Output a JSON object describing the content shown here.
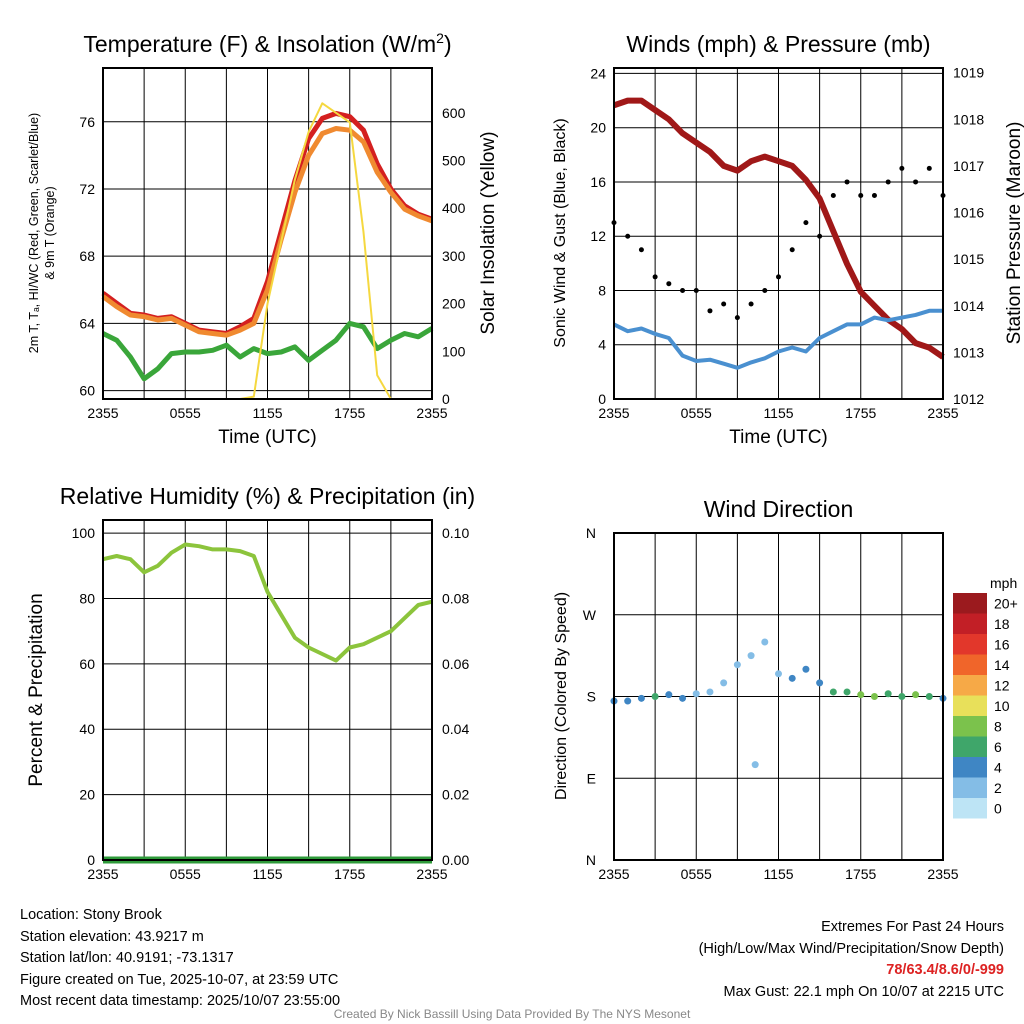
{
  "chart_data": [
    {
      "type": "line",
      "title": "Temperature (F) & Insolation (W/m",
      "title_sup": "2",
      "title_end": ")",
      "xlabel": "Time (UTC)",
      "ylabel": "2m T, Tₐ, HI/WC (Red, Green, Scarlet/Blue)",
      "ylabel2": "& 9m T (Orange)",
      "y2label": "Solar Insolation (Yellow)",
      "xticks": [
        "2355",
        "0555",
        "1155",
        "1755",
        "2355"
      ],
      "ylim": [
        59.5,
        79.2
      ],
      "yticks": [
        60,
        64,
        68,
        72,
        76
      ],
      "y2lim": [
        0,
        694
      ],
      "y2ticks": [
        0,
        100,
        200,
        300,
        400,
        500,
        600
      ],
      "x_hours": [
        0,
        1,
        2,
        3,
        4,
        5,
        6,
        7,
        8,
        9,
        10,
        11,
        12,
        13,
        14,
        15,
        16,
        17,
        18,
        19,
        20,
        21,
        22,
        23,
        24
      ],
      "series": [
        {
          "name": "2m T",
          "color": "#d42020",
          "axis": "left",
          "values": [
            65.8,
            65.2,
            64.6,
            64.5,
            64.3,
            64.4,
            64.0,
            63.6,
            63.5,
            63.4,
            63.8,
            64.3,
            66.5,
            69.5,
            72.5,
            75.0,
            76.2,
            76.5,
            76.3,
            75.5,
            73.5,
            72.0,
            71.0,
            70.5,
            70.2
          ]
        },
        {
          "name": "9m T",
          "color": "#f08a30",
          "axis": "left",
          "values": [
            65.6,
            65.0,
            64.5,
            64.4,
            64.2,
            64.3,
            63.9,
            63.5,
            63.4,
            63.3,
            63.6,
            64.0,
            66.0,
            69.0,
            71.8,
            74.0,
            75.3,
            75.6,
            75.5,
            74.8,
            73.0,
            71.8,
            70.8,
            70.4,
            70.1
          ]
        },
        {
          "name": "2m Td",
          "color": "#3aa63a",
          "axis": "left",
          "values": [
            63.4,
            63.0,
            62.0,
            60.7,
            61.3,
            62.2,
            62.3,
            62.3,
            62.4,
            62.7,
            62.0,
            62.5,
            62.2,
            62.3,
            62.6,
            61.8,
            62.4,
            63.0,
            64.0,
            63.8,
            62.5,
            63.0,
            63.4,
            63.2,
            63.7
          ]
        },
        {
          "name": "Solar",
          "color": "#f5d840",
          "axis": "right",
          "values": [
            0,
            0,
            0,
            0,
            0,
            0,
            0,
            0,
            0,
            0,
            0,
            5,
            200,
            330,
            460,
            560,
            620,
            600,
            580,
            350,
            50,
            0,
            0,
            0,
            0
          ]
        }
      ]
    },
    {
      "type": "line",
      "title": "Winds (mph) & Pressure (mb)",
      "xlabel": "Time (UTC)",
      "ylabel": "Sonic Wind & Gust (Blue, Black)",
      "y2label": "Station Pressure (Maroon)",
      "xticks": [
        "2355",
        "0555",
        "1155",
        "1755",
        "2355"
      ],
      "ylim": [
        0,
        24.4
      ],
      "yticks": [
        0,
        4,
        8,
        12,
        16,
        20,
        24
      ],
      "y2lim": [
        1012,
        1019.1
      ],
      "y2ticks": [
        1012,
        1013,
        1014,
        1015,
        1016,
        1017,
        1018,
        1019
      ],
      "x_hours": [
        0,
        1,
        2,
        3,
        4,
        5,
        6,
        7,
        8,
        9,
        10,
        11,
        12,
        13,
        14,
        15,
        16,
        17,
        18,
        19,
        20,
        21,
        22,
        23,
        24
      ],
      "series": [
        {
          "name": "Pressure",
          "color": "#a01818",
          "axis": "right",
          "kind": "line",
          "values": [
            1018.3,
            1018.4,
            1018.4,
            1018.2,
            1018.0,
            1017.7,
            1017.5,
            1017.3,
            1017.0,
            1016.9,
            1017.1,
            1017.2,
            1017.1,
            1017.0,
            1016.7,
            1016.3,
            1015.6,
            1014.9,
            1014.3,
            1014.0,
            1013.7,
            1013.5,
            1013.2,
            1013.1,
            1012.9
          ]
        },
        {
          "name": "Wind",
          "color": "#4a90d0",
          "axis": "left",
          "kind": "line",
          "values": [
            5.5,
            5.0,
            5.2,
            4.8,
            4.5,
            3.2,
            2.8,
            2.9,
            2.6,
            2.3,
            2.7,
            3.0,
            3.5,
            3.8,
            3.5,
            4.5,
            5.0,
            5.5,
            5.5,
            6.0,
            5.8,
            6.0,
            6.2,
            6.5,
            6.5
          ]
        },
        {
          "name": "Gust",
          "color": "#000000",
          "axis": "left",
          "kind": "scatter",
          "values": [
            13,
            12,
            11,
            9,
            8.5,
            8,
            8,
            6.5,
            7,
            6,
            7,
            8,
            9,
            11,
            13,
            12,
            15,
            16,
            15,
            15,
            16,
            17,
            16,
            17,
            15
          ]
        }
      ]
    },
    {
      "type": "line",
      "title": "Relative Humidity (%) & Precipitation (in)",
      "xlabel": "",
      "ylabel": "Percent & Precipitation",
      "xticks": [
        "2355",
        "0555",
        "1155",
        "1755",
        "2355"
      ],
      "ylim": [
        0,
        104
      ],
      "yticks": [
        0,
        20,
        40,
        60,
        80,
        100
      ],
      "y2lim": [
        0,
        0.104
      ],
      "y2ticks": [
        "0.00",
        "0.02",
        "0.04",
        "0.06",
        "0.08",
        "0.10"
      ],
      "x_hours": [
        0,
        1,
        2,
        3,
        4,
        5,
        6,
        7,
        8,
        9,
        10,
        11,
        12,
        13,
        14,
        15,
        16,
        17,
        18,
        19,
        20,
        21,
        22,
        23,
        24
      ],
      "series": [
        {
          "name": "RH",
          "color": "#8cc43c",
          "values": [
            92,
            93,
            92,
            88,
            90,
            94,
            96.5,
            96,
            95,
            95,
            94.5,
            93,
            82,
            75,
            68,
            65,
            63,
            61,
            65,
            66,
            68,
            70,
            74,
            78,
            79
          ]
        },
        {
          "name": "Precipitation",
          "color": "#2e9a3a",
          "values": [
            0,
            0,
            0,
            0,
            0,
            0,
            0,
            0,
            0,
            0,
            0,
            0,
            0,
            0,
            0,
            0,
            0,
            0,
            0,
            0,
            0,
            0,
            0,
            0,
            0
          ]
        }
      ]
    },
    {
      "type": "scatter",
      "title": "Wind Direction",
      "xlabel": "",
      "ylabel": "Direction (Colored By Speed)",
      "xticks": [
        "2355",
        "0555",
        "1155",
        "1755",
        "2355"
      ],
      "yticks": [
        "N",
        "E",
        "S",
        "W",
        "N"
      ],
      "ylim": [
        0,
        360
      ],
      "legend_title": "mph",
      "legend_labels": [
        "0",
        "2",
        "4",
        "6",
        "8",
        "10",
        "12",
        "14",
        "16",
        "18",
        "20+"
      ],
      "legend_colors": [
        "#bde4f5",
        "#84bde6",
        "#3f86c4",
        "#3fa66a",
        "#7bc24c",
        "#e8e05a",
        "#f6a947",
        "#f0652a",
        "#e2372b",
        "#c21f26",
        "#9b1a1e"
      ],
      "x_hours": [
        0,
        1,
        2,
        3,
        4,
        5,
        6,
        7,
        8,
        9,
        10,
        10.3,
        11,
        12,
        13,
        14,
        15,
        16,
        17,
        18,
        19,
        20,
        21,
        22,
        23,
        24
      ],
      "direction": [
        175,
        175,
        178,
        180,
        182,
        178,
        183,
        185,
        195,
        215,
        225,
        105,
        240,
        205,
        200,
        210,
        195,
        185,
        185,
        182,
        180,
        183,
        180,
        182,
        180,
        178
      ],
      "speed": [
        3,
        4,
        4,
        5,
        4,
        3,
        2,
        2,
        2,
        2,
        2,
        2,
        1,
        2,
        3,
        4,
        4,
        5,
        6,
        7,
        7,
        5,
        6,
        8,
        5,
        4
      ]
    }
  ],
  "info": {
    "location": "Location: Stony Brook",
    "elevation": "Station elevation: 43.9217 m",
    "latlon": "Station lat/lon: 40.9191; -73.1317",
    "created": "Figure created on Tue, 2025-10-07, at 23:59 UTC",
    "recent": "Most recent data timestamp: 2025/10/07 23:55:00"
  },
  "extremes": {
    "title": "Extremes For Past 24 Hours",
    "subtitle": "(High/Low/Max Wind/Precipitation/Snow Depth)",
    "values": "78/63.4/8.6/0/-999",
    "max_gust": "Max Gust: 22.1 mph On 10/07 at 2215 UTC"
  },
  "credit": "Created By Nick Bassill Using Data Provided By The NYS Mesonet"
}
